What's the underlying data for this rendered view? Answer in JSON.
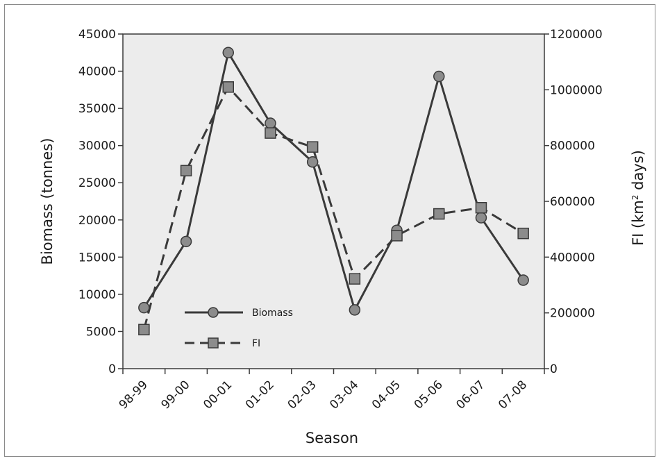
{
  "chart_data": {
    "type": "line",
    "xlabel": "Season",
    "ylabel_left": "Biomass (tonnes)",
    "ylabel_right_prefix": "FI (km",
    "ylabel_right_sup": "2",
    "ylabel_right_suffix": " days)",
    "categories": [
      "98-99",
      "99-00",
      "00-01",
      "01-02",
      "02-03",
      "03-04",
      "04-05",
      "05-06",
      "06-07",
      "07-08"
    ],
    "ylim_left": [
      0,
      45000
    ],
    "ylim_right": [
      0,
      1200000
    ],
    "yticks_left": [
      "0",
      "5000",
      "10000",
      "15000",
      "20000",
      "25000",
      "30000",
      "35000",
      "40000",
      "45000"
    ],
    "yticks_right": [
      "0",
      "200000",
      "400000",
      "600000",
      "800000",
      "1000000",
      "1200000"
    ],
    "series": [
      {
        "name": "Biomass",
        "axis": "left",
        "marker": "circle",
        "line_style": "solid",
        "color": "#3a3a3a",
        "marker_color": "#8c8c8c",
        "values": [
          8200,
          17100,
          42500,
          33000,
          27800,
          7900,
          18600,
          39300,
          20300,
          11900
        ]
      },
      {
        "name": "FI",
        "axis": "right",
        "marker": "square",
        "line_style": "dashed",
        "color": "#3a3a3a",
        "marker_color": "#8c8c8c",
        "values": [
          140000,
          710000,
          1010000,
          845000,
          795000,
          322000,
          477000,
          555000,
          577000,
          485000
        ]
      }
    ],
    "plot_background": "#ececec",
    "grid": false,
    "legend_position": "lower-left-inside"
  }
}
